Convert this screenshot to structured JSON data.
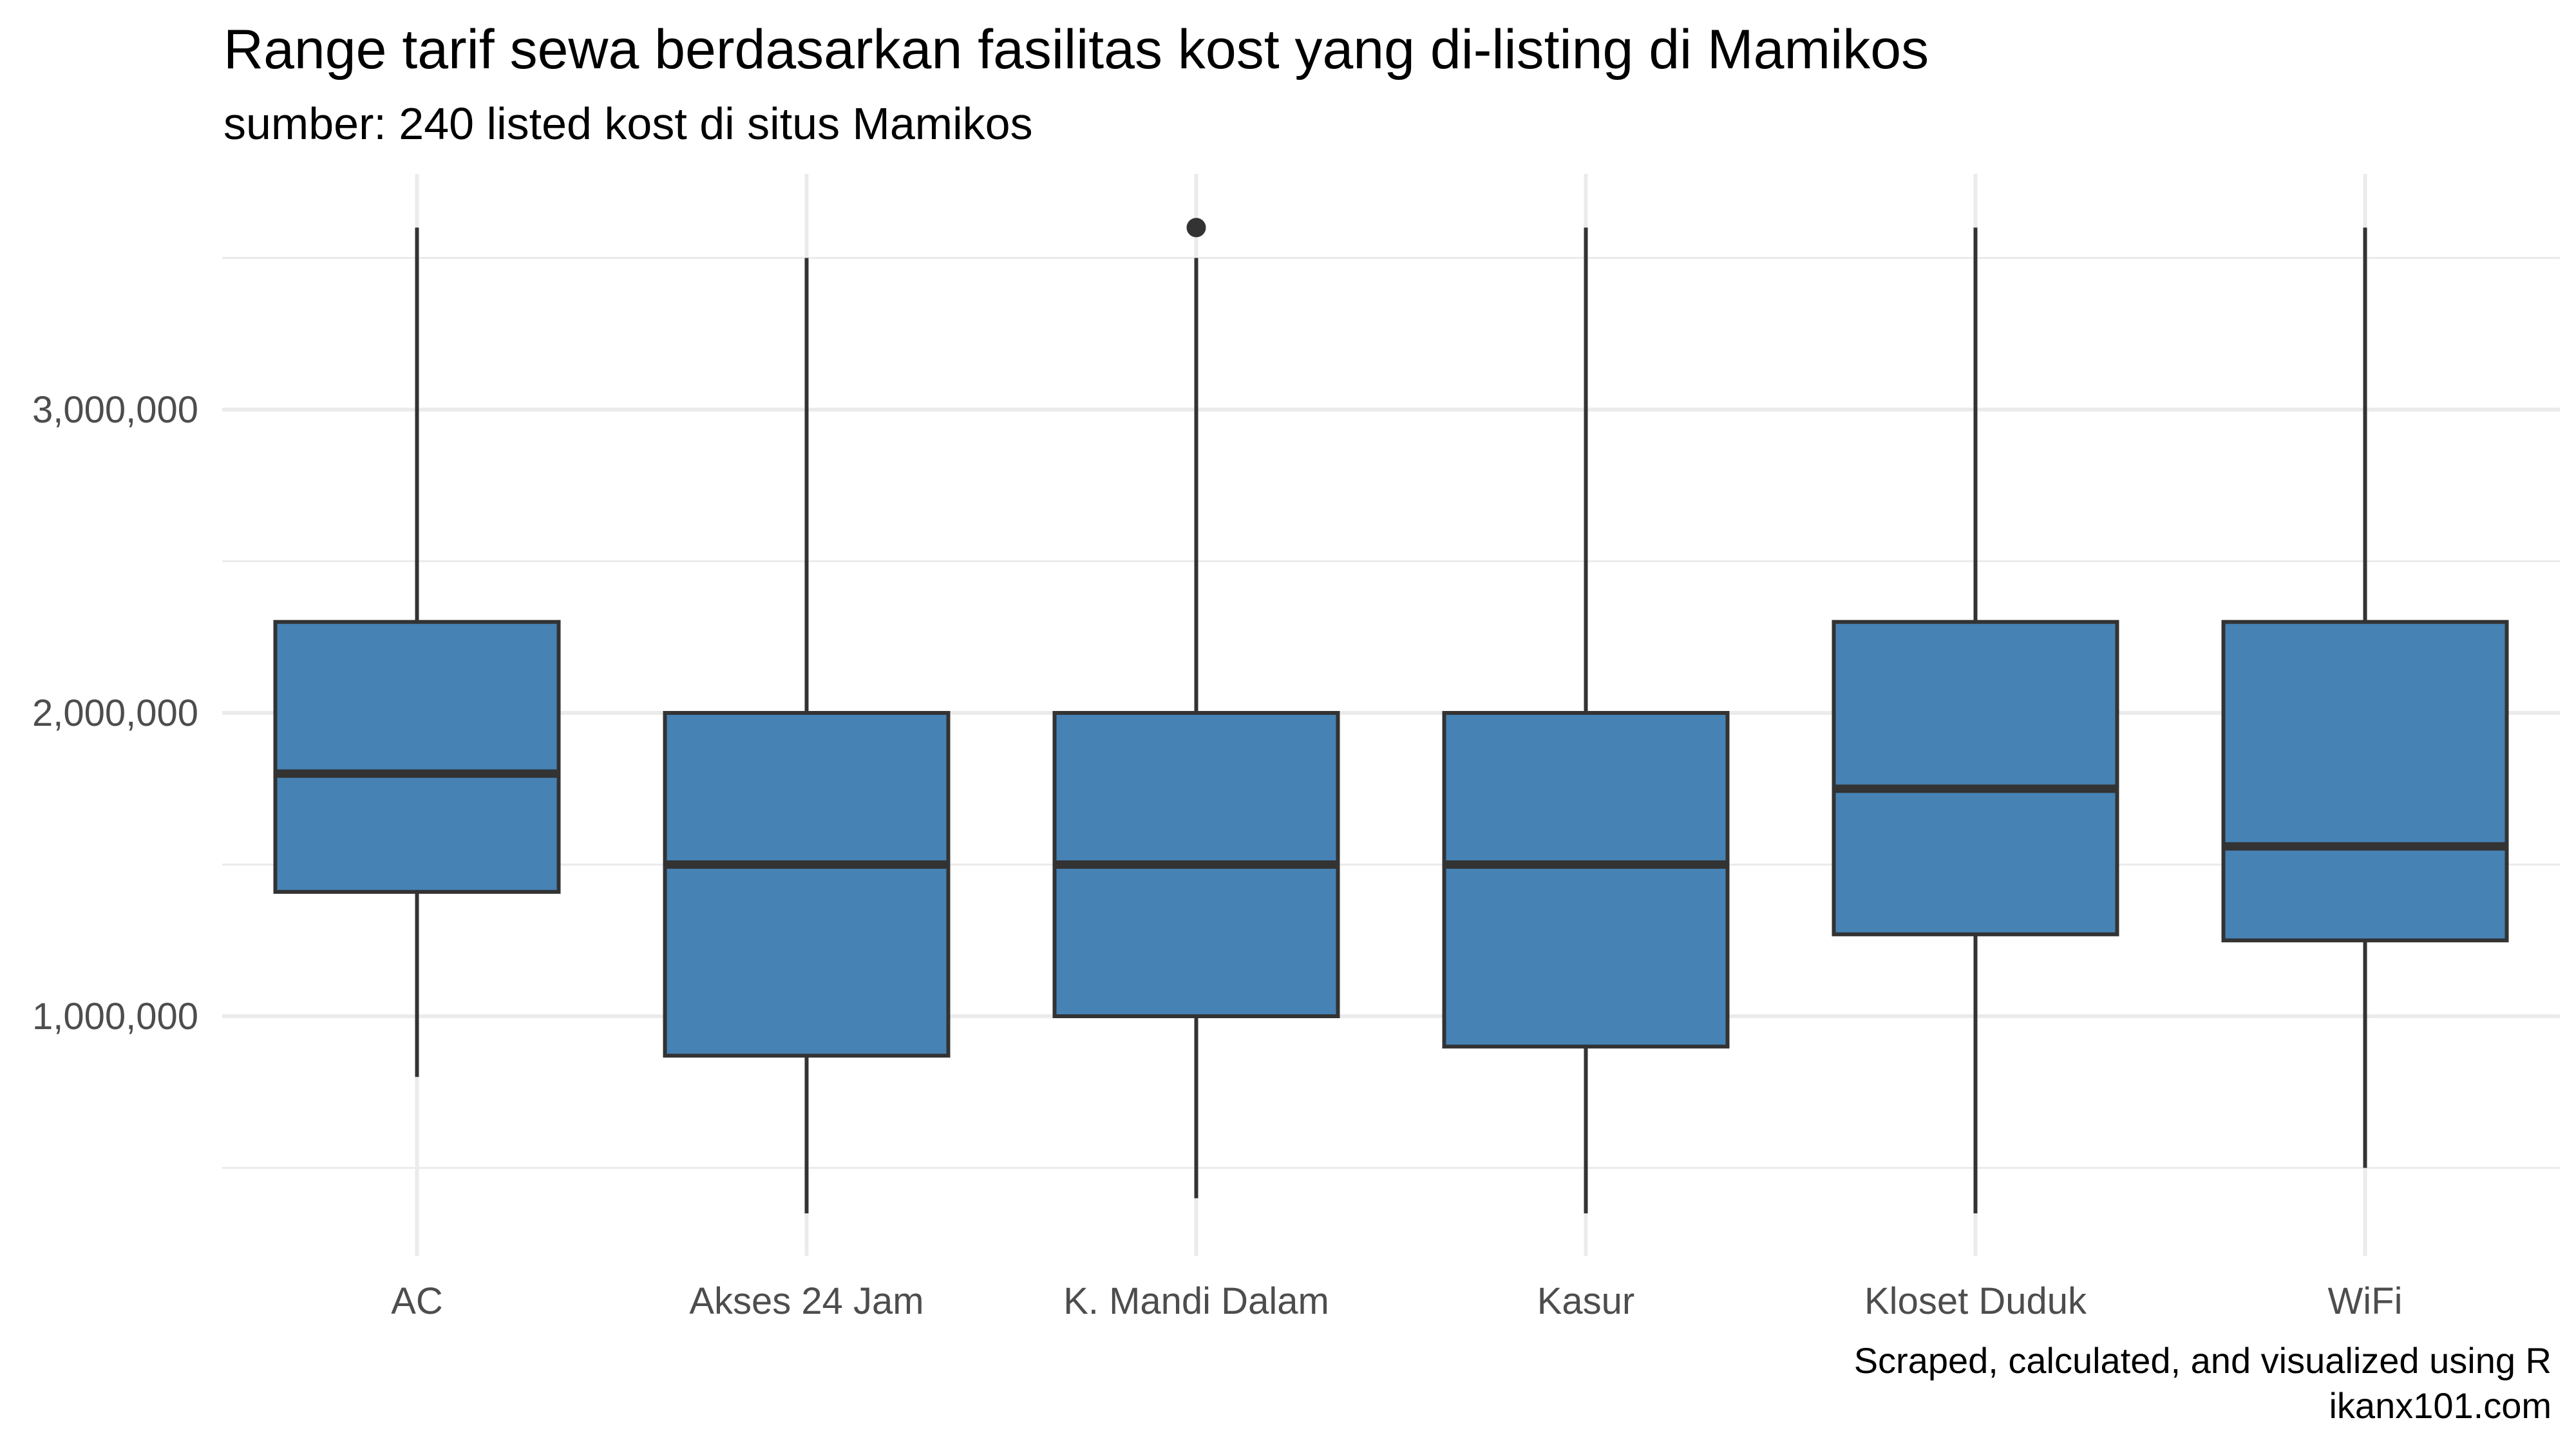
{
  "title": "Range tarif sewa berdasarkan fasilitas kost yang di-listing di Mamikos",
  "subtitle": "sumber: 240 listed kost di situs Mamikos",
  "caption_line1": "Scraped, calculated, and visualized using R",
  "caption_line2": "ikanx101.com",
  "colors": {
    "box_fill": "#4682b4",
    "box_line": "#333333",
    "grid": "#ebebeb"
  },
  "chart_data": {
    "type": "boxplot",
    "title": "Range tarif sewa berdasarkan fasilitas kost yang di-listing di Mamikos",
    "xlabel": "",
    "ylabel": "",
    "ylim": [
      200000,
      3800000
    ],
    "yticks": [
      1000000,
      2000000,
      3000000
    ],
    "ytick_labels": [
      "1,000,000",
      "2,000,000",
      "3,000,000"
    ],
    "categories": [
      "AC",
      "Akses 24 Jam",
      "K. Mandi Dalam",
      "Kasur",
      "Kloset Duduk",
      "WiFi"
    ],
    "boxes": [
      {
        "category": "AC",
        "whisker_low": 800000,
        "q1": 1410000,
        "median": 1800000,
        "q3": 2300000,
        "whisker_high": 3600000,
        "outliers": []
      },
      {
        "category": "Akses 24 Jam",
        "whisker_low": 350000,
        "q1": 870000,
        "median": 1500000,
        "q3": 2000000,
        "whisker_high": 3500000,
        "outliers": []
      },
      {
        "category": "K. Mandi Dalam",
        "whisker_low": 400000,
        "q1": 1000000,
        "median": 1500000,
        "q3": 2000000,
        "whisker_high": 3500000,
        "outliers": [
          3600000
        ]
      },
      {
        "category": "Kasur",
        "whisker_low": 350000,
        "q1": 900000,
        "median": 1500000,
        "q3": 2000000,
        "whisker_high": 3600000,
        "outliers": []
      },
      {
        "category": "Kloset Duduk",
        "whisker_low": 350000,
        "q1": 1270000,
        "median": 1750000,
        "q3": 2300000,
        "whisker_high": 3600000,
        "outliers": []
      },
      {
        "category": "WiFi",
        "whisker_low": 500000,
        "q1": 1250000,
        "median": 1560000,
        "q3": 2300000,
        "whisker_high": 3600000,
        "outliers": []
      }
    ]
  }
}
